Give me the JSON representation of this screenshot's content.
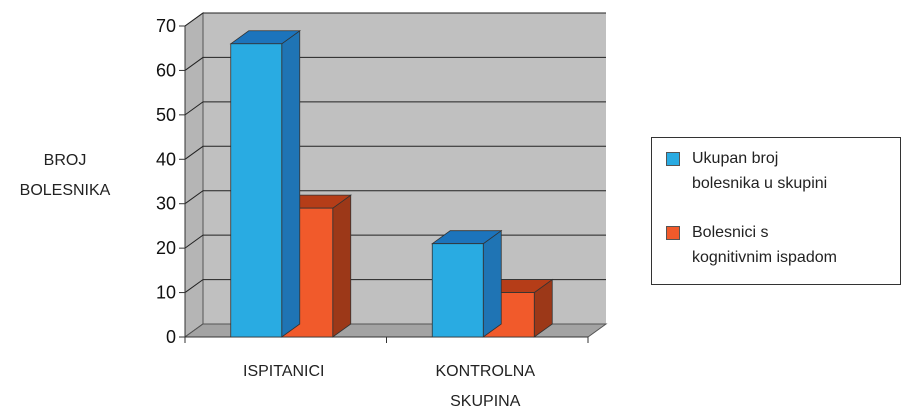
{
  "chart_data": {
    "type": "bar",
    "title": "",
    "xlabel": "",
    "ylabel": [
      "BROJ",
      "BOLESNIKA"
    ],
    "categories": [
      [
        "ISPITANICI"
      ],
      [
        "KONTROLNA",
        "SKUPINA"
      ]
    ],
    "series": [
      {
        "name": [
          "Ukupan broj",
          "bolesnika u skupini"
        ],
        "values": [
          66,
          21
        ],
        "color": "#29abe2",
        "side": "#1f74b4",
        "top": "#1c74bc"
      },
      {
        "name": [
          "Bolesnici s",
          "kognitivnim ispadom"
        ],
        "values": [
          29,
          10
        ],
        "color": "#f15a2b",
        "side": "#9c3818",
        "top": "#b53d18"
      }
    ],
    "ylim": [
      0,
      70
    ],
    "yticks": [
      0,
      10,
      20,
      30,
      40,
      50,
      60,
      70
    ],
    "grid": true,
    "legend": "right",
    "three_d": true
  }
}
